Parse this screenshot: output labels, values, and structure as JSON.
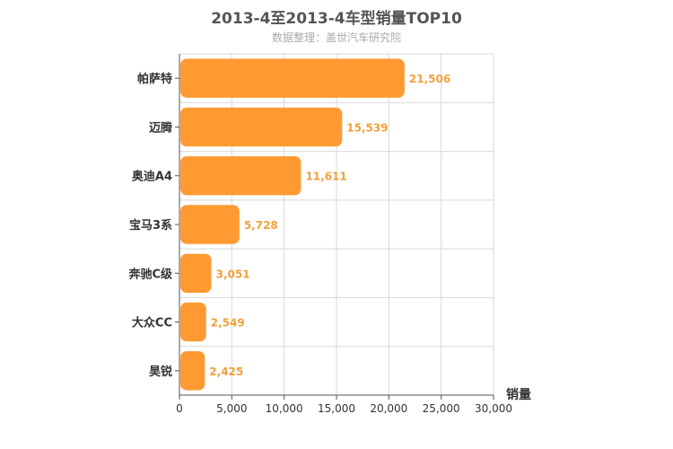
{
  "chart_data": {
    "type": "bar",
    "orientation": "horizontal",
    "title": "2013-4至2013-4车型销量TOP10",
    "subtitle": "数据整理：盖世汽车研究院",
    "categories": [
      "帕萨特",
      "迈腾",
      "奥迪A4",
      "宝马3系",
      "奔驰C级",
      "大众CC",
      "昊锐"
    ],
    "values": [
      21506,
      15539,
      11611,
      5728,
      3051,
      2549,
      2425
    ],
    "data_labels": [
      "21,506",
      "15,539",
      "11,611",
      "5,728",
      "3,051",
      "2,549",
      "2,425"
    ],
    "x_ticks": [
      0,
      5000,
      10000,
      15000,
      20000,
      25000,
      30000
    ],
    "x_tick_labels": [
      "0",
      "5,000",
      "10,000",
      "15,000",
      "20,000",
      "25,000",
      "30,000"
    ],
    "xlim": [
      0,
      30000
    ],
    "xlabel": "销量",
    "grid": true,
    "colors": {
      "bar": "#ff9a33",
      "label": "#f0a13a"
    }
  }
}
